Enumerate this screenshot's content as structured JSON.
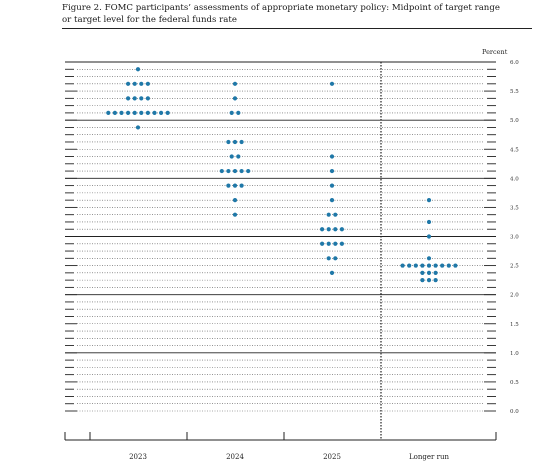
{
  "figure": {
    "caption_line1": "Figure 2.  FOMC participants’ assessments of appropriate monetary policy:  Midpoint of target range",
    "caption_line2": "or target level for the federal funds rate"
  },
  "colors": {
    "dot": "#1f78a8",
    "axis": "#222222",
    "grid": "#555555"
  },
  "chart_data": {
    "type": "scatter",
    "title": "Figure 2. FOMC participants’ assessments of appropriate monetary policy: Midpoint of target range or target level for the federal funds rate",
    "unit_label": "Percent",
    "ylim": [
      0,
      6
    ],
    "y_ticks": [
      "0.0",
      "0.5",
      "1.0",
      "1.5",
      "2.0",
      "2.5",
      "3.0",
      "3.5",
      "4.0",
      "4.5",
      "5.0",
      "5.5",
      "6.0"
    ],
    "categories": [
      "2023",
      "2024",
      "2025",
      "Longer run"
    ],
    "grid": "dotted lines at 0.125 steps, solid at whole percents",
    "separator": "dotted vertical line before Longer run",
    "dots": [
      {
        "x": "2023",
        "y": 5.875,
        "count": 1
      },
      {
        "x": "2023",
        "y": 5.625,
        "count": 4
      },
      {
        "x": "2023",
        "y": 5.375,
        "count": 4
      },
      {
        "x": "2023",
        "y": 5.125,
        "count": 10
      },
      {
        "x": "2023",
        "y": 4.875,
        "count": 1
      },
      {
        "x": "2024",
        "y": 5.625,
        "count": 1
      },
      {
        "x": "2024",
        "y": 5.375,
        "count": 1
      },
      {
        "x": "2024",
        "y": 5.125,
        "count": 2
      },
      {
        "x": "2024",
        "y": 4.625,
        "count": 3
      },
      {
        "x": "2024",
        "y": 4.375,
        "count": 2
      },
      {
        "x": "2024",
        "y": 4.125,
        "count": 5
      },
      {
        "x": "2024",
        "y": 3.875,
        "count": 3
      },
      {
        "x": "2024",
        "y": 3.625,
        "count": 1
      },
      {
        "x": "2024",
        "y": 3.375,
        "count": 1
      },
      {
        "x": "2025",
        "y": 5.625,
        "count": 1
      },
      {
        "x": "2025",
        "y": 4.375,
        "count": 1
      },
      {
        "x": "2025",
        "y": 4.125,
        "count": 1
      },
      {
        "x": "2025",
        "y": 3.875,
        "count": 1
      },
      {
        "x": "2025",
        "y": 3.625,
        "count": 1
      },
      {
        "x": "2025",
        "y": 3.375,
        "count": 2
      },
      {
        "x": "2025",
        "y": 3.125,
        "count": 4
      },
      {
        "x": "2025",
        "y": 2.875,
        "count": 4
      },
      {
        "x": "2025",
        "y": 2.625,
        "count": 2
      },
      {
        "x": "2025",
        "y": 2.375,
        "count": 1
      },
      {
        "x": "Longer run",
        "y": 3.625,
        "count": 1
      },
      {
        "x": "Longer run",
        "y": 3.25,
        "count": 1
      },
      {
        "x": "Longer run",
        "y": 3.0,
        "count": 1
      },
      {
        "x": "Longer run",
        "y": 2.625,
        "count": 1
      },
      {
        "x": "Longer run",
        "y": 2.5,
        "count": 9
      },
      {
        "x": "Longer run",
        "y": 2.375,
        "count": 3
      },
      {
        "x": "Longer run",
        "y": 2.25,
        "count": 3
      }
    ]
  }
}
